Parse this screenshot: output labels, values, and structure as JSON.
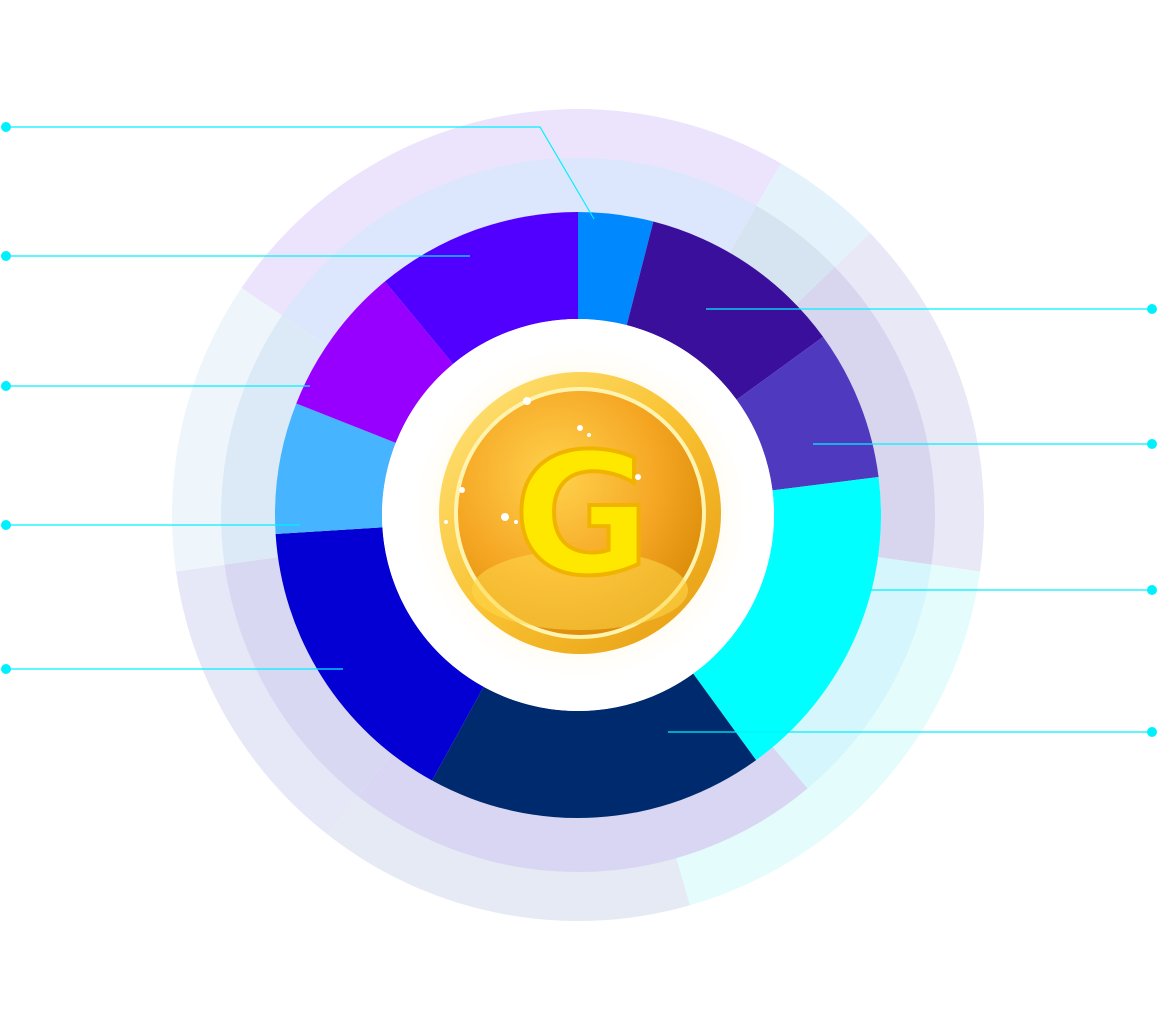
{
  "chart_data": {
    "type": "pie",
    "variant": "donut",
    "title": "",
    "legend": "none",
    "center_icon": "gold-coin-icon",
    "center_icon_letter": "G",
    "slices": [
      {
        "value": 4,
        "color": "#0088ff"
      },
      {
        "value": 11,
        "color": "#3a0f9c"
      },
      {
        "value": 8,
        "color": "#4f3abf"
      },
      {
        "value": 17,
        "color": "#00ffff"
      },
      {
        "value": 18,
        "color": "#002a6e"
      },
      {
        "value": 16,
        "color": "#0400d3"
      },
      {
        "value": 7,
        "color": "#47b4ff"
      },
      {
        "value": 8,
        "color": "#9700ff"
      },
      {
        "value": 11,
        "color": "#5100ff"
      }
    ]
  }
}
